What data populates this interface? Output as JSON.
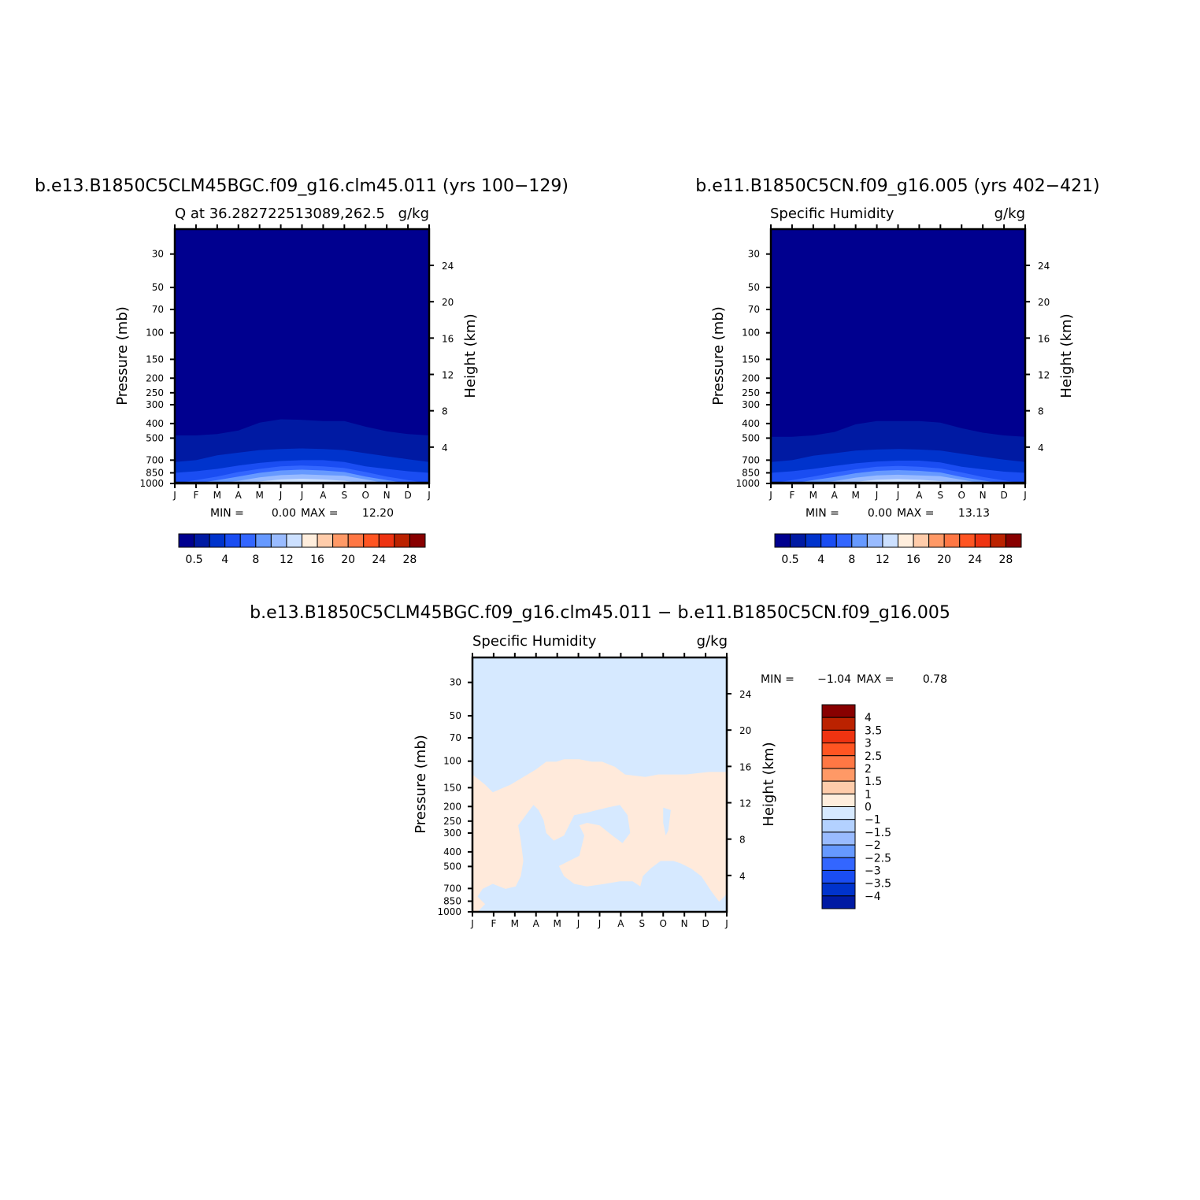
{
  "chart_data": [
    {
      "type": "contour",
      "title": "b.e13.B1850C5CLM45BGC.f09_g16.clm45.011 (yrs 100−129)",
      "left_label": "Q at 36.282722513089,262.5",
      "right_label": "g/kg",
      "ylabel": "Pressure (mb)",
      "ylabel_right": "Height (km)",
      "x_ticks": [
        "J",
        "F",
        "M",
        "A",
        "M",
        "J",
        "J",
        "A",
        "S",
        "O",
        "N",
        "D",
        "J"
      ],
      "y_ticks": [
        "30",
        "50",
        "70",
        "100",
        "150",
        "200",
        "250",
        "300",
        "400",
        "500",
        "700",
        "850",
        "1000"
      ],
      "y_ticks_right": [
        "24",
        "20",
        "16",
        "12",
        "8",
        "4"
      ],
      "min_text": "MIN =",
      "min_value": "0.00",
      "max_text": "MAX =",
      "max_value": "12.20",
      "colorbar_labels": [
        "0.5",
        "4",
        "8",
        "12",
        "16",
        "20",
        "24",
        "28"
      ],
      "band_levels": {
        "tops_p": [
          [
            480,
            480,
            470,
            445,
            395,
            375,
            378,
            385,
            385,
            420,
            450,
            470,
            480
          ],
          [
            720,
            700,
            650,
            625,
            600,
            590,
            585,
            590,
            600,
            630,
            660,
            690,
            720
          ],
          [
            850,
            830,
            800,
            760,
            730,
            710,
            700,
            700,
            720,
            770,
            800,
            830,
            850
          ],
          [
            1000,
            950,
            900,
            840,
            800,
            770,
            760,
            770,
            790,
            840,
            900,
            950,
            1000
          ],
          [
            1000,
            1000,
            950,
            900,
            850,
            820,
            810,
            820,
            840,
            900,
            950,
            1000,
            1000
          ],
          [
            1000,
            1000,
            1000,
            960,
            910,
            880,
            870,
            880,
            890,
            940,
            1000,
            1000,
            1000
          ],
          [
            1000,
            1000,
            1000,
            1000,
            970,
            940,
            930,
            940,
            960,
            1000,
            1000,
            1000,
            1000
          ]
        ]
      }
    },
    {
      "type": "contour",
      "title": "b.e11.B1850C5CN.f09_g16.005 (yrs 402−421)",
      "left_label": "Specific Humidity",
      "right_label": "g/kg",
      "ylabel": "Pressure (mb)",
      "ylabel_right": "Height (km)",
      "x_ticks": [
        "J",
        "F",
        "M",
        "A",
        "M",
        "J",
        "J",
        "A",
        "S",
        "O",
        "N",
        "D",
        "J"
      ],
      "y_ticks": [
        "30",
        "50",
        "70",
        "100",
        "150",
        "200",
        "250",
        "300",
        "400",
        "500",
        "700",
        "850",
        "1000"
      ],
      "y_ticks_right": [
        "24",
        "20",
        "16",
        "12",
        "8",
        "4"
      ],
      "min_text": "MIN =",
      "min_value": "0.00",
      "max_text": "MAX =",
      "max_value": "13.13",
      "colorbar_labels": [
        "0.5",
        "4",
        "8",
        "12",
        "16",
        "20",
        "24",
        "28"
      ],
      "band_levels": {
        "tops_p": [
          [
            490,
            490,
            480,
            455,
            405,
            385,
            385,
            385,
            395,
            430,
            460,
            480,
            490
          ],
          [
            720,
            700,
            655,
            630,
            605,
            595,
            590,
            595,
            605,
            635,
            665,
            695,
            720
          ],
          [
            850,
            830,
            800,
            765,
            735,
            715,
            705,
            705,
            725,
            775,
            805,
            835,
            850
          ],
          [
            1000,
            950,
            900,
            845,
            805,
            775,
            765,
            775,
            795,
            845,
            905,
            955,
            1000
          ],
          [
            1000,
            1000,
            950,
            905,
            855,
            825,
            815,
            825,
            845,
            905,
            955,
            1000,
            1000
          ],
          [
            1000,
            1000,
            1000,
            965,
            915,
            885,
            875,
            885,
            895,
            945,
            1000,
            1000,
            1000
          ],
          [
            1000,
            1000,
            1000,
            1000,
            975,
            945,
            935,
            945,
            965,
            1000,
            1000,
            1000,
            1000
          ]
        ]
      }
    },
    {
      "type": "contour",
      "title": "b.e13.B1850C5CLM45BGC.f09_g16.clm45.011 − b.e11.B1850C5CN.f09_g16.005",
      "left_label": "Specific Humidity",
      "right_label": "g/kg",
      "ylabel": "Pressure (mb)",
      "ylabel_right": "Height (km)",
      "x_ticks": [
        "J",
        "F",
        "M",
        "A",
        "M",
        "J",
        "J",
        "A",
        "S",
        "O",
        "N",
        "D",
        "J"
      ],
      "y_ticks": [
        "30",
        "50",
        "70",
        "100",
        "150",
        "200",
        "250",
        "300",
        "400",
        "500",
        "700",
        "850",
        "1000"
      ],
      "y_ticks_right": [
        "24",
        "20",
        "16",
        "12",
        "8",
        "4"
      ],
      "min_text": "MIN =",
      "min_value": "−1.04",
      "max_text": "MAX =",
      "max_value": "0.78",
      "colorbar_labels": [
        "4",
        "3.5",
        "3",
        "2.5",
        "2",
        "1.5",
        "1",
        "0",
        "−1",
        "−1.5",
        "−2",
        "−2.5",
        "−3",
        "−3.5",
        "−4"
      ]
    }
  ],
  "colors": {
    "abs_levels": [
      "#00008f",
      "#001aa3",
      "#0033cc",
      "#1a4df2",
      "#3366ff",
      "#6699ff",
      "#99bbff",
      "#cce0ff",
      "#ffeedd",
      "#ffccaa",
      "#ff9966",
      "#ff7744",
      "#ff5522",
      "#ee3311",
      "#bb2200",
      "#880000"
    ],
    "diff_levels": [
      "#880000",
      "#bb2200",
      "#ee3311",
      "#ff5522",
      "#ff7744",
      "#ff9966",
      "#ffccaa",
      "#ffeedd",
      "#d6e9ff",
      "#b3d1ff",
      "#99bbff",
      "#6699ff",
      "#3366ff",
      "#1a4df2",
      "#0033cc",
      "#001aa3"
    ],
    "diff_pos": "#ffeadb",
    "diff_neg": "#d6e9ff"
  }
}
